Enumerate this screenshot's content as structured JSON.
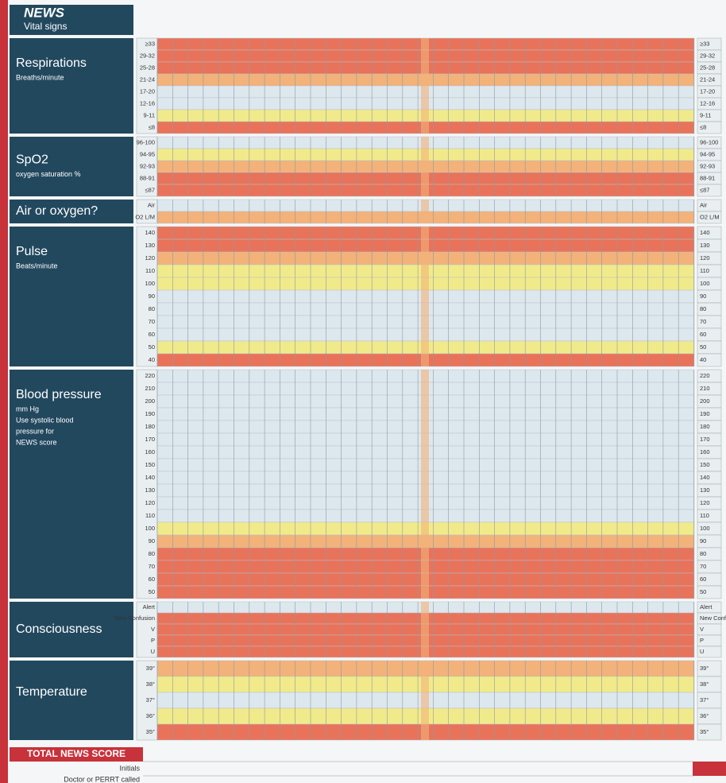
{
  "header": {
    "title": "NEWS",
    "subtitle": "Vital signs"
  },
  "sections": [
    {
      "title": "Respirations",
      "notes": [
        "Breaths/minute"
      ],
      "rows": [
        {
          "label": "≥33",
          "color": "#e8735a"
        },
        {
          "label": "29-32",
          "color": "#e8735a"
        },
        {
          "label": "25-28",
          "color": "#e8735a"
        },
        {
          "label": "21-24",
          "color": "#f2b27a"
        },
        {
          "label": "17-20",
          "color": "#dde7ee"
        },
        {
          "label": "12-16",
          "color": "#dde7ee"
        },
        {
          "label": "9-11",
          "color": "#f1ea8a"
        },
        {
          "label": "≤8",
          "color": "#e8735a"
        }
      ]
    },
    {
      "title": "SpO2",
      "notes": [
        "oxygen saturation %"
      ],
      "rows": [
        {
          "label": "96-100",
          "color": "#dde7ee"
        },
        {
          "label": "94-95",
          "color": "#f1ea8a"
        },
        {
          "label": "92-93",
          "color": "#f2b27a"
        },
        {
          "label": "88-91",
          "color": "#e8735a"
        },
        {
          "label": "≤87",
          "color": "#e8735a"
        }
      ]
    },
    {
      "title": "Air or oxygen?",
      "notes": [],
      "rows": [
        {
          "label": "Air",
          "color": "#dde7ee"
        },
        {
          "label": "O2 L/M",
          "color": "#f2b27a"
        }
      ]
    },
    {
      "title": "Pulse",
      "notes": [
        "Beats/minute"
      ],
      "rows": [
        {
          "label": "140",
          "color": "#e8735a"
        },
        {
          "label": "130",
          "color": "#e8735a"
        },
        {
          "label": "120",
          "color": "#f2b27a"
        },
        {
          "label": "110",
          "color": "#f1ea8a"
        },
        {
          "label": "100",
          "color": "#f1ea8a"
        },
        {
          "label": "90",
          "color": "#dde7ee"
        },
        {
          "label": "80",
          "color": "#dde7ee"
        },
        {
          "label": "70",
          "color": "#dde7ee"
        },
        {
          "label": "60",
          "color": "#dde7ee"
        },
        {
          "label": "50",
          "color": "#f1ea8a"
        },
        {
          "label": "40",
          "color": "#e8735a"
        }
      ]
    },
    {
      "title": "Blood pressure",
      "notes": [
        "mm Hg",
        "Use systolic blood",
        "pressure for",
        "NEWS score"
      ],
      "rows": [
        {
          "label": "220",
          "color": "#dde7ee"
        },
        {
          "label": "210",
          "color": "#dde7ee"
        },
        {
          "label": "200",
          "color": "#dde7ee"
        },
        {
          "label": "190",
          "color": "#dde7ee"
        },
        {
          "label": "180",
          "color": "#dde7ee"
        },
        {
          "label": "170",
          "color": "#dde7ee"
        },
        {
          "label": "160",
          "color": "#dde7ee"
        },
        {
          "label": "150",
          "color": "#dde7ee"
        },
        {
          "label": "140",
          "color": "#dde7ee"
        },
        {
          "label": "130",
          "color": "#dde7ee"
        },
        {
          "label": "120",
          "color": "#dde7ee"
        },
        {
          "label": "110",
          "color": "#dde7ee"
        },
        {
          "label": "100",
          "color": "#f1ea8a"
        },
        {
          "label": "90",
          "color": "#f2b27a"
        },
        {
          "label": "80",
          "color": "#e8735a"
        },
        {
          "label": "70",
          "color": "#e8735a"
        },
        {
          "label": "60",
          "color": "#e8735a"
        },
        {
          "label": "50",
          "color": "#e8735a"
        }
      ]
    },
    {
      "title": "Consciousness",
      "notes": [],
      "rows": [
        {
          "label": "Alert",
          "color": "#dde7ee"
        },
        {
          "label": "New Confusion",
          "color": "#e8735a"
        },
        {
          "label": "V",
          "color": "#e8735a"
        },
        {
          "label": "P",
          "color": "#e8735a"
        },
        {
          "label": "U",
          "color": "#e8735a"
        }
      ]
    },
    {
      "title": "Temperature",
      "notes": [],
      "rows": [
        {
          "label": "39°",
          "color": "#f2b27a"
        },
        {
          "label": "38°",
          "color": "#f1ea8a"
        },
        {
          "label": "37°",
          "color": "#dde7ee"
        },
        {
          "label": "36°",
          "color": "#f1ea8a"
        },
        {
          "label": "35°",
          "color": "#e8735a"
        }
      ]
    }
  ],
  "footer": {
    "total": "TOTAL NEWS SCORE",
    "initials": "Initials",
    "doctor": "Doctor or PERRT called"
  }
}
